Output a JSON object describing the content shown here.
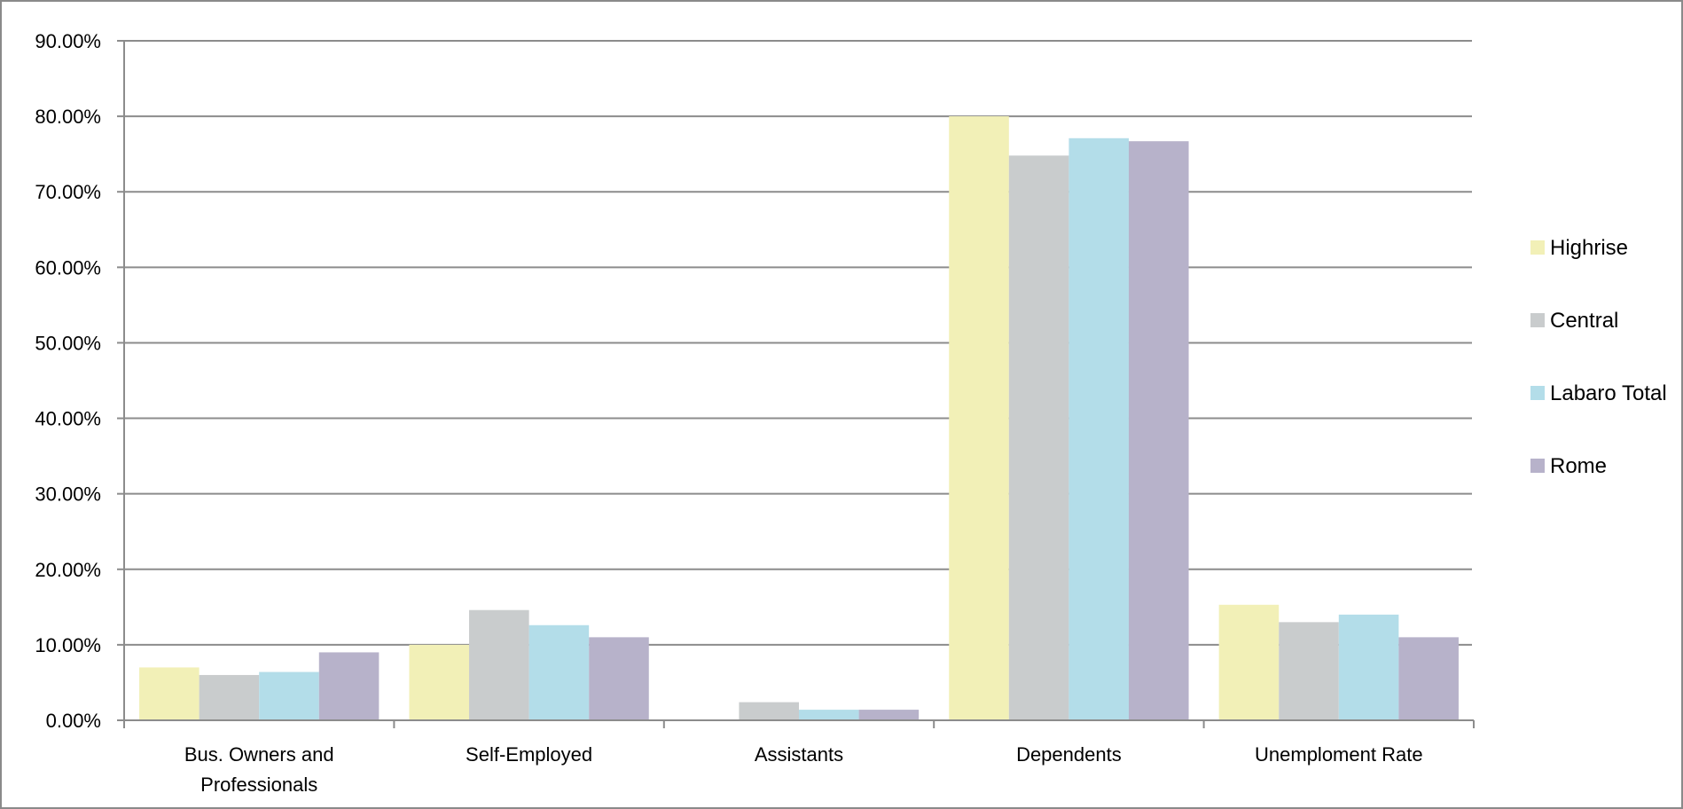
{
  "chart_data": {
    "type": "bar",
    "categories": [
      [
        "Bus. Owners and",
        "Professionals"
      ],
      [
        "Self-Employed"
      ],
      [
        "Assistants"
      ],
      [
        "Dependents"
      ],
      [
        "Unemploment Rate"
      ]
    ],
    "series": [
      {
        "name": "Highrise",
        "color": "#f2f0b7",
        "values": [
          7.0,
          10.0,
          0.0,
          80.0,
          15.3
        ]
      },
      {
        "name": "Central",
        "color": "#c9cccd",
        "values": [
          6.0,
          14.6,
          2.4,
          74.8,
          13.0
        ]
      },
      {
        "name": "Labaro Total",
        "color": "#b3dde9",
        "values": [
          6.4,
          12.6,
          1.4,
          77.1,
          14.0
        ]
      },
      {
        "name": "Rome",
        "color": "#b7b2ca",
        "values": [
          9.0,
          11.0,
          1.4,
          76.7,
          11.0
        ]
      }
    ],
    "yticks": [
      "0.00%",
      "10.00%",
      "20.00%",
      "30.00%",
      "40.00%",
      "50.00%",
      "60.00%",
      "70.00%",
      "80.00%",
      "90.00%"
    ],
    "ylim": [
      0,
      90
    ],
    "grid": true,
    "legend_position": "right",
    "title": "",
    "xlabel": "",
    "ylabel": ""
  }
}
